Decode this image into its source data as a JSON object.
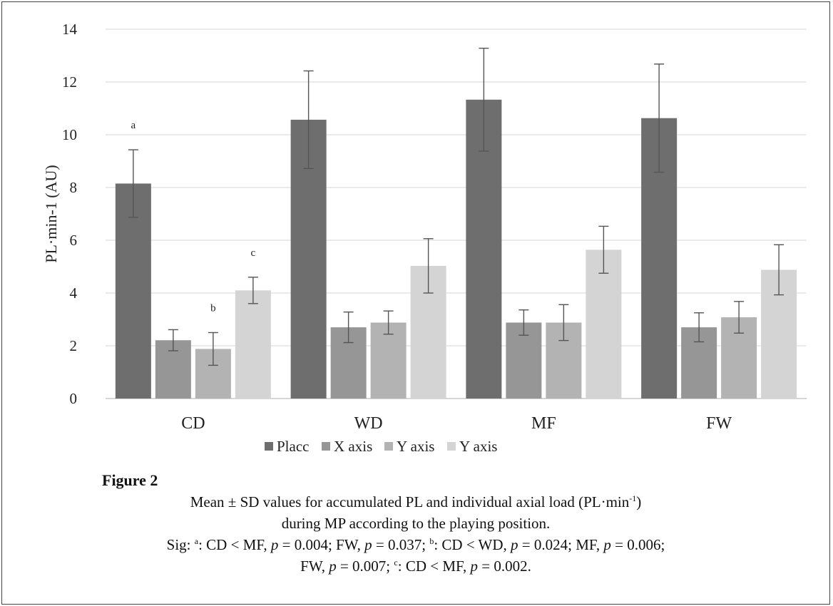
{
  "chart_data": {
    "type": "bar",
    "categories": [
      "CD",
      "WD",
      "MF",
      "FW"
    ],
    "ylabel": "PL·min-1 (AU)",
    "xlabel": "",
    "ylim": [
      0,
      14
    ],
    "yticks": [
      0,
      2,
      4,
      6,
      8,
      10,
      12,
      14
    ],
    "grid": true,
    "legend_position": "bottom",
    "series": [
      {
        "name": "Placc",
        "color": "#6e6e6e",
        "values": [
          8.15,
          10.57,
          11.33,
          10.63
        ],
        "sd": [
          1.28,
          1.85,
          1.95,
          2.05
        ]
      },
      {
        "name": "X axis",
        "color": "#969696",
        "values": [
          2.21,
          2.7,
          2.88,
          2.7
        ],
        "sd": [
          0.4,
          0.58,
          0.48,
          0.55
        ]
      },
      {
        "name": "Y axis",
        "color": "#b3b3b3",
        "values": [
          1.88,
          2.88,
          2.88,
          3.08
        ],
        "sd": [
          0.62,
          0.44,
          0.68,
          0.6
        ]
      },
      {
        "name": "Y axis",
        "color": "#d4d4d4",
        "values": [
          4.1,
          5.03,
          5.64,
          4.88
        ],
        "sd": [
          0.5,
          1.03,
          0.89,
          0.95
        ]
      }
    ],
    "annotations": [
      {
        "text": "a",
        "category": "CD",
        "series_index": 0
      },
      {
        "text": "b",
        "category": "CD",
        "series_index": 2
      },
      {
        "text": "c",
        "category": "CD",
        "series_index": 3
      }
    ]
  },
  "caption": {
    "figure_label": "Figure 2",
    "line1": "Mean ± SD values for accumulated PL and individual axial load (PL·min",
    "line1_sup": "-1",
    "line1_end": ")",
    "line2": "during MP according to the playing position.",
    "sig_prefix": "Sig: ",
    "sig_a": "a",
    "sig_a_text_1": ": CD < MF, ",
    "p": "p",
    "sig_a_text_2": " = 0.004; FW, ",
    "sig_a_text_3": " = 0.037; ",
    "sig_b": "b",
    "sig_b_text_1": ": CD < WD, ",
    "sig_b_text_2": " = 0.024; MF, ",
    "sig_b_text_3": " = 0.006;",
    "sig_l4_1": "FW, ",
    "sig_l4_2": " = 0.007; ",
    "sig_c": "c",
    "sig_c_text_1": ": CD < MF, ",
    "sig_c_text_2": " = 0.002."
  }
}
